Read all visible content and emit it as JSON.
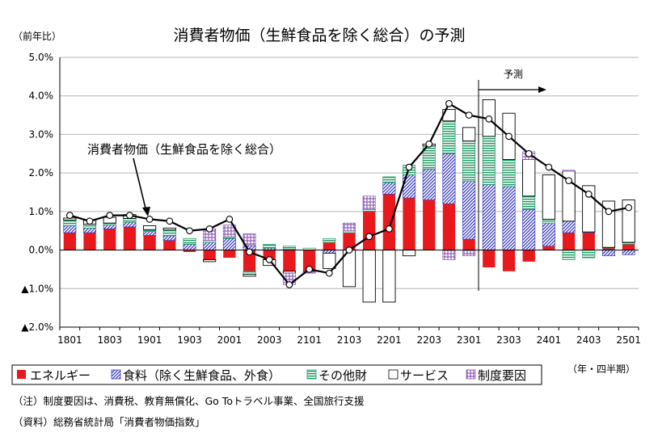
{
  "chart_data": {
    "type": "bar",
    "title": "消費者物価（生鮮食品を除く総合）の予測",
    "ylabel": "（前年比）",
    "xlabel": "（年・四半期）",
    "y_tick_labels": [
      "5.0%",
      "4.0%",
      "3.0%",
      "2.0%",
      "1.0%",
      "0.0%",
      "▲1.0%",
      "▲2.0%"
    ],
    "y_tick_values": [
      5,
      4,
      3,
      2,
      1,
      0,
      -1,
      -2
    ],
    "ylim": [
      -2,
      5
    ],
    "categories": [
      "1801",
      "1802",
      "1803",
      "1804",
      "1901",
      "1902",
      "1903",
      "1904",
      "2001",
      "2002",
      "2003",
      "2004",
      "2101",
      "2102",
      "2103",
      "2104",
      "2201",
      "2202",
      "2203",
      "2204",
      "2301",
      "2302",
      "2303",
      "2304",
      "2401",
      "2402",
      "2403",
      "2404",
      "2501"
    ],
    "x_tick_labels": [
      "1801",
      "1803",
      "1901",
      "1903",
      "2001",
      "2003",
      "2101",
      "2103",
      "2201",
      "2203",
      "2301",
      "2303",
      "2401",
      "2403",
      "2501"
    ],
    "grid": true,
    "legend_position": "bottom",
    "series": [
      {
        "name": "エネルギー",
        "kind": "bar",
        "color": "#e8191d",
        "values": [
          0.45,
          0.45,
          0.55,
          0.6,
          0.38,
          0.25,
          -0.05,
          -0.25,
          -0.2,
          -0.55,
          -0.25,
          -0.55,
          -0.55,
          0.2,
          0.45,
          1.0,
          1.45,
          1.35,
          1.3,
          1.2,
          0.28,
          -0.45,
          -0.55,
          -0.3,
          0.1,
          0.45,
          0.45,
          0.05,
          0.15
        ]
      },
      {
        "name": "食料（除く生鮮食品、外食）",
        "kind": "bar",
        "color": "#3b3dbd",
        "values": [
          0.18,
          0.12,
          0.1,
          0.12,
          0.1,
          0.12,
          0.15,
          0.2,
          0.3,
          0.12,
          0.05,
          0.02,
          -0.02,
          -0.08,
          0.0,
          0.0,
          0.3,
          0.6,
          0.8,
          1.3,
          1.5,
          1.7,
          1.65,
          1.05,
          0.6,
          0.3,
          0.02,
          -0.15,
          -0.12
        ]
      },
      {
        "name": "その他財",
        "kind": "bar",
        "color": "#1d9a63",
        "values": [
          0.15,
          0.1,
          0.05,
          0.1,
          0.05,
          0.15,
          0.15,
          0.05,
          0.05,
          -0.08,
          0.1,
          0.08,
          0.05,
          0.1,
          0.05,
          0.05,
          0.15,
          0.25,
          0.6,
          0.85,
          1.05,
          1.25,
          0.7,
          0.35,
          0.1,
          -0.25,
          -0.2,
          0.02,
          0.05
        ]
      },
      {
        "name": "サービス",
        "kind": "bar",
        "color": "#ffffff",
        "values": [
          0.05,
          0.1,
          0.15,
          0.1,
          0.1,
          0.05,
          0.0,
          -0.05,
          0.0,
          -0.05,
          -0.15,
          -0.05,
          0.0,
          -0.4,
          -0.95,
          -1.35,
          -1.35,
          -0.15,
          0.05,
          0.3,
          0.35,
          0.95,
          1.2,
          0.95,
          1.15,
          1.3,
          1.2,
          1.2,
          1.1
        ]
      },
      {
        "name": "制度要因",
        "kind": "bar",
        "color": "#8e5fb4",
        "values": [
          0.0,
          0.0,
          0.0,
          0.0,
          0.0,
          0.0,
          0.0,
          0.3,
          0.3,
          0.3,
          0.0,
          -0.3,
          -0.03,
          0.0,
          0.2,
          0.35,
          0.0,
          0.0,
          0.0,
          -0.25,
          -0.15,
          0.0,
          0.0,
          0.2,
          0.0,
          0.02,
          0.0,
          0.0,
          0.0
        ]
      },
      {
        "name": "消費者物価（生鮮食品を除く総合）",
        "kind": "line",
        "color": "#000000",
        "values": [
          0.9,
          0.75,
          0.9,
          0.9,
          0.8,
          0.75,
          0.5,
          0.55,
          0.8,
          -0.05,
          -0.25,
          -0.9,
          -0.5,
          -0.6,
          0.0,
          0.35,
          0.55,
          2.15,
          2.75,
          3.8,
          3.5,
          3.4,
          2.95,
          2.5,
          2.15,
          1.8,
          1.45,
          1.0,
          1.1
        ]
      }
    ],
    "annotations": [
      {
        "text": "消費者物価（生鮮食品を除く総合）",
        "points_to": "2001 line"
      },
      {
        "text": "予測",
        "description": "arrow pointing right from 2302 onward, vertical divider at 2302"
      }
    ],
    "forecast_start": "2302"
  },
  "notes": {
    "note1": "（注）制度要因は、消費税、教育無償化、Go Toトラベル事業、全国旅行支援",
    "note2": "（資料）総務省統計局「消費者物価指数」"
  },
  "colors": {
    "energy": "#e8191d",
    "food_hatch": "#3b3dbd",
    "other_goods": "#1d9a63",
    "services_fill": "#ffffff",
    "institutional": "#8e5fb4",
    "grid": "#b5b5b5",
    "axis": "#000000"
  }
}
